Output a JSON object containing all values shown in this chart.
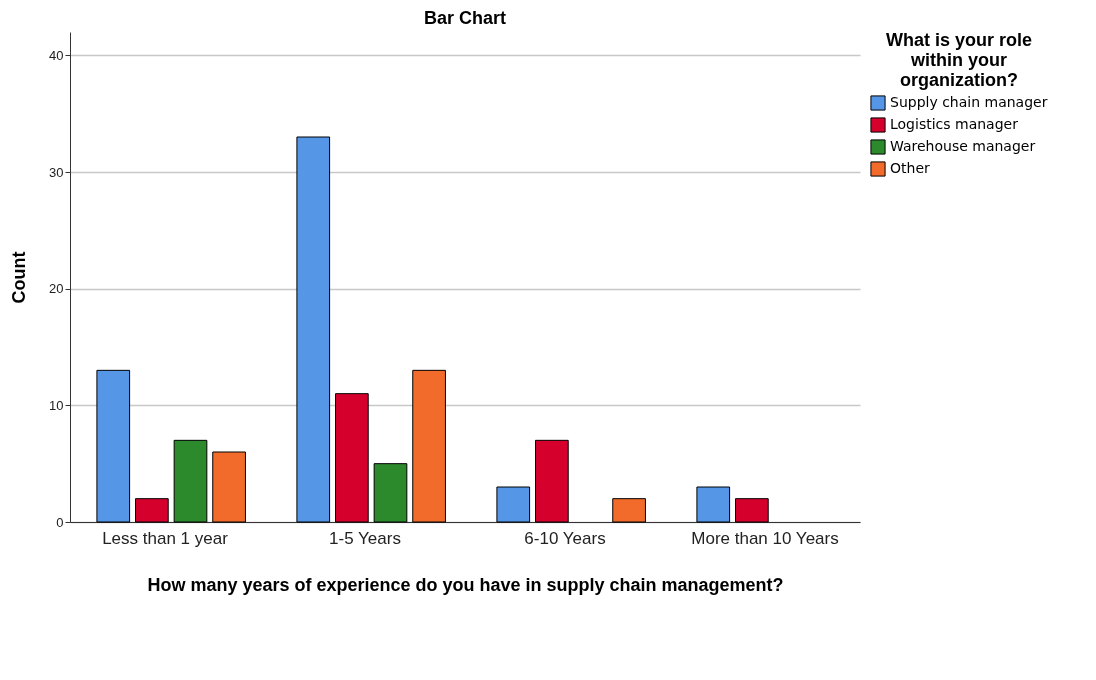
{
  "chart_data": {
    "type": "bar",
    "title": "Bar Chart",
    "xlabel": "How many years of experience do you have in supply chain management?",
    "ylabel": "Count",
    "legend_title": "What is your role within your organization?",
    "categories": [
      "Less than 1 year",
      "1-5 Years",
      "6-10 Years",
      "More than 10 Years"
    ],
    "series": [
      {
        "name": "Supply chain manager",
        "color": "#5596e6",
        "values": [
          13,
          33,
          3,
          3
        ]
      },
      {
        "name": "Logistics manager",
        "color": "#d6002c",
        "values": [
          2,
          11,
          7,
          2
        ]
      },
      {
        "name": "Warehouse manager",
        "color": "#2c8a2c",
        "values": [
          7,
          5,
          null,
          null
        ]
      },
      {
        "name": "Other",
        "color": "#f26b2a",
        "values": [
          6,
          13,
          2,
          null
        ]
      }
    ],
    "ylim": [
      0,
      42
    ],
    "yticks": [
      0,
      10,
      20,
      30,
      40
    ],
    "grid": "y",
    "legend": "top right"
  }
}
